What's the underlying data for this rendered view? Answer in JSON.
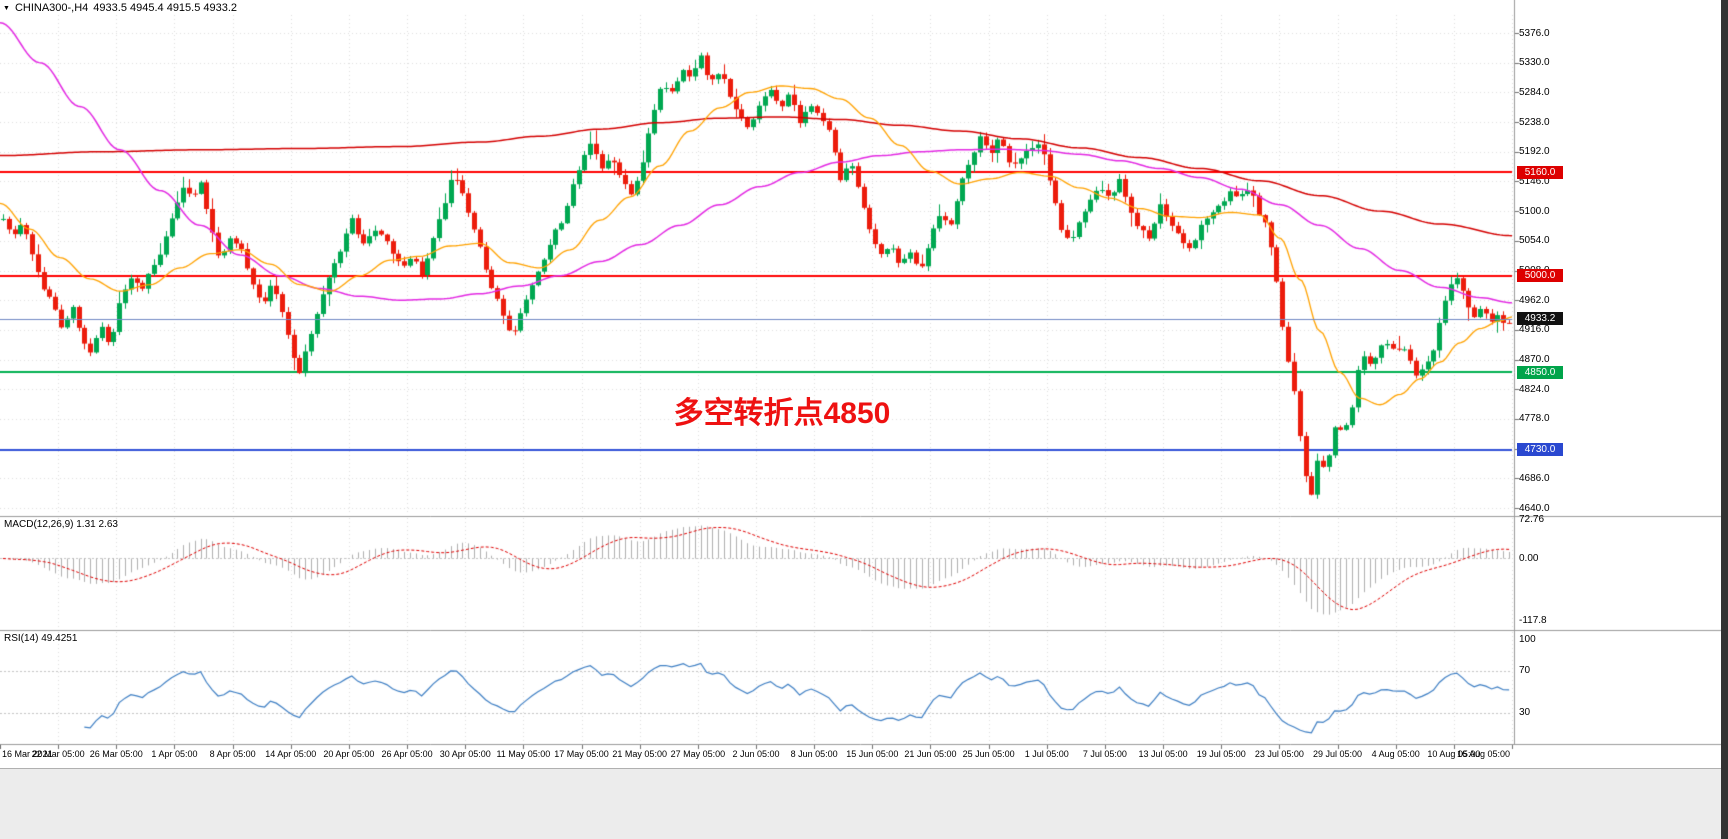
{
  "icons": {
    "triangle_down": "▼"
  },
  "header": {
    "symbol_title": "CHINA300-,H4",
    "ohlc_text": "4933.5 4945.4 4915.5 4933.2"
  },
  "chart_data": {
    "type": "candlestick",
    "symbol": "CHINA300-",
    "timeframe": "H4",
    "ohlc": {
      "open": 4933.5,
      "high": 4945.4,
      "low": 4915.5,
      "close": 4933.2
    },
    "ylim": [
      4640.0,
      5376.0
    ],
    "x_range": [
      "16 Mar 2021",
      "16 Aug 2021"
    ],
    "grid": true,
    "colors": {
      "up_candle": "#00a851",
      "down_candle": "#ec1c0c",
      "grid": "#dedede",
      "macd_histogram": "#b0b0b0",
      "macd_signal": "#e00000",
      "rsi_line": "#3e7fc4",
      "background": "#ffffff"
    },
    "price_axis_ticks": [
      "5376.0",
      "5330.0",
      "5284.0",
      "5238.0",
      "5192.0",
      "5146.0",
      "5100.0",
      "5054.0",
      "5008.0",
      "4962.0",
      "4916.0",
      "4870.0",
      "4824.0",
      "4778.0",
      "4732.0",
      "4686.0",
      "4640.0"
    ],
    "time_axis_labels": [
      "16 Mar 2021",
      "22 Mar 05:00",
      "26 Mar 05:00",
      "1 Apr 05:00",
      "8 Apr 05:00",
      "14 Apr 05:00",
      "20 Apr 05:00",
      "26 Apr 05:00",
      "30 Apr 05:00",
      "11 May 05:00",
      "17 May 05:00",
      "21 May 05:00",
      "27 May 05:00",
      "2 Jun 05:00",
      "8 Jun 05:00",
      "15 Jun 05:00",
      "21 Jun 05:00",
      "25 Jun 05:00",
      "1 Jul 05:00",
      "7 Jul 05:00",
      "13 Jul 05:00",
      "19 Jul 05:00",
      "23 Jul 05:00",
      "29 Jul 05:00",
      "4 Aug 05:00",
      "10 Aug 05:00",
      "16 Aug 05:00"
    ],
    "levels": [
      {
        "name": "resistance-5160",
        "value": 5160.0,
        "label": "5160.0",
        "line_color": "#ff0000",
        "label_bg": "#dd0000",
        "width": 2
      },
      {
        "name": "level-5000",
        "value": 5000.0,
        "label": "5000.0",
        "line_color": "#ff0000",
        "label_bg": "#dd0000",
        "width": 2
      },
      {
        "name": "current-price",
        "value": 4933.2,
        "label": "4933.2",
        "line_color": "#6f87c4",
        "label_bg": "#111111",
        "width": 1
      },
      {
        "name": "pivot-4850",
        "value": 4850.0,
        "label": "4850.0",
        "line_color": "#00b050",
        "label_bg": "#00a44a",
        "width": 2
      },
      {
        "name": "support-4730",
        "value": 4730.0,
        "label": "4730.0",
        "line_color": "#3050d8",
        "label_bg": "#2a48d0",
        "width": 2
      }
    ],
    "annotation": {
      "text": "多空转折点4850",
      "color": "#ee1111",
      "x": 782,
      "y": 410
    },
    "macd": {
      "label": "MACD(12,26,9) 1.31 2.63",
      "fast": 12,
      "slow": 26,
      "signal": 9,
      "current_main": 1.31,
      "current_signal": 2.63,
      "axis_ticks": [
        {
          "label": "72.76",
          "value": 72.76
        },
        {
          "label": "0.00",
          "value": 0
        },
        {
          "label": "-117.8",
          "value": -117.8
        }
      ]
    },
    "rsi": {
      "label": "RSI(14) 49.4251",
      "period": 14,
      "current": 49.4251,
      "levels": [
        70,
        30
      ],
      "axis_ticks": [
        {
          "label": "100",
          "value": 100
        },
        {
          "label": "70",
          "value": 70
        },
        {
          "label": "30",
          "value": 30
        }
      ]
    },
    "moving_averages": [
      {
        "name": "ma-slow-red",
        "color": "#d40000",
        "width": 1.5,
        "points": [
          [
            0,
            5186
          ],
          [
            100,
            5192
          ],
          [
            200,
            5195
          ],
          [
            300,
            5197
          ],
          [
            400,
            5200
          ],
          [
            480,
            5207
          ],
          [
            540,
            5216
          ],
          [
            600,
            5227
          ],
          [
            660,
            5237
          ],
          [
            720,
            5244
          ],
          [
            780,
            5246
          ],
          [
            840,
            5242
          ],
          [
            900,
            5233
          ],
          [
            960,
            5224
          ],
          [
            1020,
            5212
          ],
          [
            1080,
            5198
          ],
          [
            1140,
            5183
          ],
          [
            1200,
            5166
          ],
          [
            1260,
            5147
          ],
          [
            1320,
            5124
          ],
          [
            1380,
            5100
          ],
          [
            1440,
            5080
          ],
          [
            1512,
            5062
          ]
        ]
      },
      {
        "name": "ma-mid-magenta",
        "color": "#e329e3",
        "width": 1.5,
        "points": [
          [
            0,
            5392
          ],
          [
            40,
            5330
          ],
          [
            80,
            5262
          ],
          [
            120,
            5195
          ],
          [
            160,
            5132
          ],
          [
            200,
            5078
          ],
          [
            240,
            5032
          ],
          [
            280,
            5000
          ],
          [
            320,
            4980
          ],
          [
            360,
            4968
          ],
          [
            400,
            4962
          ],
          [
            440,
            4964
          ],
          [
            480,
            4972
          ],
          [
            520,
            4984
          ],
          [
            560,
            5000
          ],
          [
            600,
            5022
          ],
          [
            640,
            5048
          ],
          [
            680,
            5078
          ],
          [
            720,
            5110
          ],
          [
            760,
            5138
          ],
          [
            800,
            5160
          ],
          [
            840,
            5176
          ],
          [
            880,
            5186
          ],
          [
            920,
            5192
          ],
          [
            960,
            5195
          ],
          [
            1000,
            5196
          ],
          [
            1040,
            5194
          ],
          [
            1080,
            5188
          ],
          [
            1120,
            5178
          ],
          [
            1160,
            5166
          ],
          [
            1200,
            5152
          ],
          [
            1240,
            5134
          ],
          [
            1280,
            5110
          ],
          [
            1320,
            5078
          ],
          [
            1360,
            5042
          ],
          [
            1400,
            5008
          ],
          [
            1440,
            4982
          ],
          [
            1480,
            4966
          ],
          [
            1512,
            4958
          ]
        ]
      },
      {
        "name": "ma-fast-orange",
        "color": "#ffa200",
        "width": 1.3,
        "points": [
          [
            0,
            5112
          ],
          [
            30,
            5072
          ],
          [
            60,
            5028
          ],
          [
            90,
            4995
          ],
          [
            120,
            4976
          ],
          [
            150,
            4986
          ],
          [
            180,
            5012
          ],
          [
            210,
            5034
          ],
          [
            240,
            5040
          ],
          [
            270,
            5018
          ],
          [
            300,
            4986
          ],
          [
            330,
            4976
          ],
          [
            360,
            5000
          ],
          [
            390,
            5024
          ],
          [
            420,
            5030
          ],
          [
            450,
            5046
          ],
          [
            480,
            5050
          ],
          [
            510,
            5020
          ],
          [
            540,
            5012
          ],
          [
            570,
            5040
          ],
          [
            600,
            5086
          ],
          [
            630,
            5122
          ],
          [
            660,
            5170
          ],
          [
            690,
            5224
          ],
          [
            720,
            5260
          ],
          [
            750,
            5284
          ],
          [
            780,
            5294
          ],
          [
            810,
            5290
          ],
          [
            840,
            5274
          ],
          [
            870,
            5244
          ],
          [
            900,
            5202
          ],
          [
            930,
            5162
          ],
          [
            960,
            5142
          ],
          [
            990,
            5150
          ],
          [
            1020,
            5160
          ],
          [
            1050,
            5154
          ],
          [
            1080,
            5136
          ],
          [
            1110,
            5120
          ],
          [
            1140,
            5104
          ],
          [
            1170,
            5092
          ],
          [
            1200,
            5090
          ],
          [
            1230,
            5098
          ],
          [
            1260,
            5094
          ],
          [
            1280,
            5058
          ],
          [
            1300,
            4994
          ],
          [
            1320,
            4914
          ],
          [
            1340,
            4850
          ],
          [
            1360,
            4810
          ],
          [
            1380,
            4800
          ],
          [
            1400,
            4816
          ],
          [
            1420,
            4840
          ],
          [
            1440,
            4866
          ],
          [
            1460,
            4896
          ],
          [
            1480,
            4918
          ],
          [
            1500,
            4930
          ],
          [
            1512,
            4936
          ]
        ]
      }
    ],
    "close_path": [
      [
        0,
        5095
      ],
      [
        12,
        5060
      ],
      [
        22,
        5085
      ],
      [
        32,
        5035
      ],
      [
        42,
        4985
      ],
      [
        52,
        4958
      ],
      [
        62,
        4918
      ],
      [
        72,
        4952
      ],
      [
        82,
        4898
      ],
      [
        92,
        4878
      ],
      [
        100,
        4925
      ],
      [
        110,
        4890
      ],
      [
        120,
        4962
      ],
      [
        130,
        5000
      ],
      [
        142,
        4978
      ],
      [
        152,
        5012
      ],
      [
        162,
        5042
      ],
      [
        172,
        5092
      ],
      [
        182,
        5138
      ],
      [
        192,
        5118
      ],
      [
        200,
        5152
      ],
      [
        210,
        5078
      ],
      [
        220,
        5022
      ],
      [
        230,
        5058
      ],
      [
        242,
        5038
      ],
      [
        252,
        4988
      ],
      [
        262,
        4952
      ],
      [
        272,
        4988
      ],
      [
        282,
        4945
      ],
      [
        292,
        4878
      ],
      [
        300,
        4850
      ],
      [
        310,
        4905
      ],
      [
        320,
        4958
      ],
      [
        330,
        5005
      ],
      [
        340,
        5040
      ],
      [
        352,
        5088
      ],
      [
        362,
        5048
      ],
      [
        372,
        5068
      ],
      [
        382,
        5062
      ],
      [
        392,
        5038
      ],
      [
        402,
        5008
      ],
      [
        412,
        5032
      ],
      [
        422,
        4998
      ],
      [
        432,
        5052
      ],
      [
        442,
        5098
      ],
      [
        452,
        5158
      ],
      [
        462,
        5128
      ],
      [
        472,
        5082
      ],
      [
        482,
        5032
      ],
      [
        492,
        4978
      ],
      [
        502,
        4945
      ],
      [
        512,
        4902
      ],
      [
        522,
        4948
      ],
      [
        532,
        4988
      ],
      [
        542,
        5018
      ],
      [
        552,
        5062
      ],
      [
        562,
        5082
      ],
      [
        572,
        5138
      ],
      [
        582,
        5178
      ],
      [
        592,
        5208
      ],
      [
        602,
        5168
      ],
      [
        612,
        5182
      ],
      [
        622,
        5148
      ],
      [
        632,
        5122
      ],
      [
        642,
        5172
      ],
      [
        652,
        5248
      ],
      [
        662,
        5298
      ],
      [
        672,
        5288
      ],
      [
        682,
        5318
      ],
      [
        692,
        5308
      ],
      [
        700,
        5342
      ],
      [
        710,
        5298
      ],
      [
        720,
        5318
      ],
      [
        730,
        5278
      ],
      [
        740,
        5248
      ],
      [
        750,
        5228
      ],
      [
        760,
        5268
      ],
      [
        770,
        5288
      ],
      [
        780,
        5258
      ],
      [
        790,
        5282
      ],
      [
        800,
        5238
      ],
      [
        810,
        5268
      ],
      [
        820,
        5248
      ],
      [
        830,
        5222
      ],
      [
        840,
        5148
      ],
      [
        850,
        5178
      ],
      [
        860,
        5128
      ],
      [
        870,
        5068
      ],
      [
        880,
        5032
      ],
      [
        890,
        5048
      ],
      [
        900,
        5018
      ],
      [
        910,
        5038
      ],
      [
        920,
        5008
      ],
      [
        930,
        5058
      ],
      [
        940,
        5098
      ],
      [
        950,
        5078
      ],
      [
        960,
        5138
      ],
      [
        970,
        5178
      ],
      [
        980,
        5218
      ],
      [
        990,
        5188
      ],
      [
        1000,
        5218
      ],
      [
        1010,
        5168
      ],
      [
        1020,
        5178
      ],
      [
        1030,
        5198
      ],
      [
        1040,
        5208
      ],
      [
        1050,
        5148
      ],
      [
        1060,
        5078
      ],
      [
        1070,
        5048
      ],
      [
        1080,
        5088
      ],
      [
        1090,
        5118
      ],
      [
        1100,
        5138
      ],
      [
        1110,
        5118
      ],
      [
        1120,
        5148
      ],
      [
        1130,
        5098
      ],
      [
        1140,
        5072
      ],
      [
        1150,
        5058
      ],
      [
        1160,
        5108
      ],
      [
        1170,
        5078
      ],
      [
        1180,
        5058
      ],
      [
        1190,
        5038
      ],
      [
        1200,
        5078
      ],
      [
        1210,
        5098
      ],
      [
        1220,
        5108
      ],
      [
        1230,
        5128
      ],
      [
        1240,
        5122
      ],
      [
        1250,
        5138
      ],
      [
        1258,
        5098
      ],
      [
        1266,
        5078
      ],
      [
        1274,
        5018
      ],
      [
        1284,
        4898
      ],
      [
        1294,
        4818
      ],
      [
        1304,
        4698
      ],
      [
        1312,
        4658
      ],
      [
        1318,
        4718
      ],
      [
        1326,
        4698
      ],
      [
        1334,
        4768
      ],
      [
        1342,
        4758
      ],
      [
        1350,
        4778
      ],
      [
        1357,
        4848
      ],
      [
        1364,
        4878
      ],
      [
        1372,
        4858
      ],
      [
        1380,
        4888
      ],
      [
        1388,
        4898
      ],
      [
        1395,
        4878
      ],
      [
        1403,
        4888
      ],
      [
        1410,
        4868
      ],
      [
        1417,
        4843
      ],
      [
        1425,
        4858
      ],
      [
        1432,
        4878
      ],
      [
        1440,
        4928
      ],
      [
        1447,
        4972
      ],
      [
        1454,
        4998
      ],
      [
        1460,
        4988
      ],
      [
        1467,
        4958
      ],
      [
        1474,
        4938
      ],
      [
        1482,
        4952
      ],
      [
        1490,
        4928
      ],
      [
        1498,
        4943
      ],
      [
        1505,
        4922
      ],
      [
        1512,
        4933
      ]
    ]
  }
}
